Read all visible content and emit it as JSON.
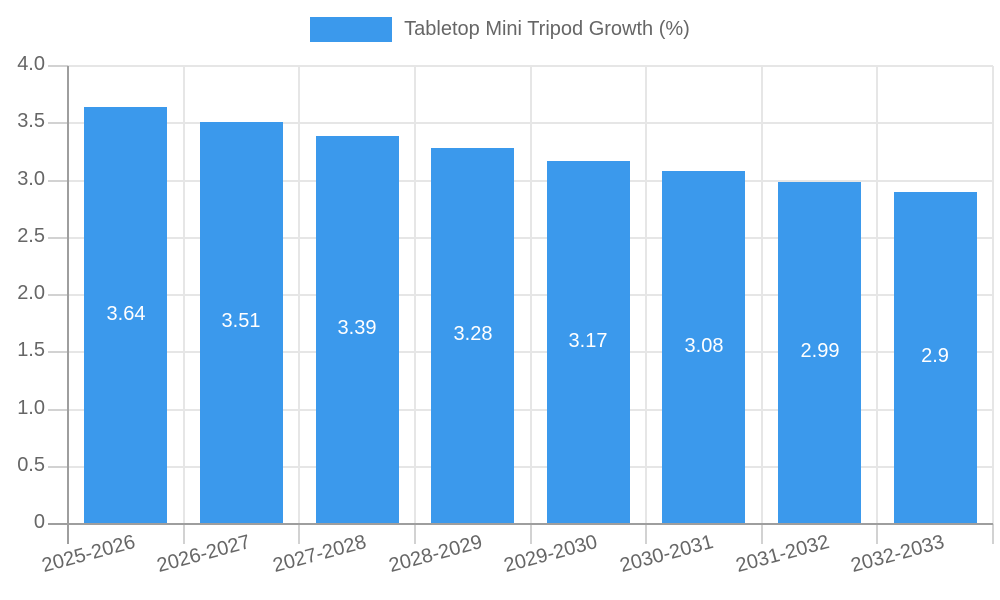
{
  "chart_data": {
    "type": "bar",
    "title": "Tabletop Mini Tripod Growth (%)",
    "categories": [
      "2025-2026",
      "2026-2027",
      "2027-2028",
      "2028-2029",
      "2029-2030",
      "2030-2031",
      "2031-2032",
      "2032-2033"
    ],
    "values": [
      3.64,
      3.51,
      3.39,
      3.28,
      3.17,
      3.08,
      2.99,
      2.9
    ],
    "value_labels": [
      "3.64",
      "3.51",
      "3.39",
      "3.28",
      "3.17",
      "3.08",
      "2.99",
      "2.9"
    ],
    "xlabel": "",
    "ylabel": "",
    "ylim": [
      0,
      4
    ],
    "ytick_step": 0.5,
    "ytick_labels": [
      "0",
      "0.5",
      "1.0",
      "1.5",
      "2.0",
      "2.5",
      "3.0",
      "3.5",
      "4.0"
    ],
    "grid": true,
    "legend_position": "top-center",
    "x_label_rotation_deg": -15,
    "colors": {
      "bar": "#3b99ec",
      "value_label": "#ffffff",
      "axis_text": "#666666",
      "legend_text": "#666666",
      "gridline": "#e6e6e6",
      "axis_line": "#9e9e9e",
      "tick": "#d2d2d2",
      "background": "#ffffff"
    }
  }
}
